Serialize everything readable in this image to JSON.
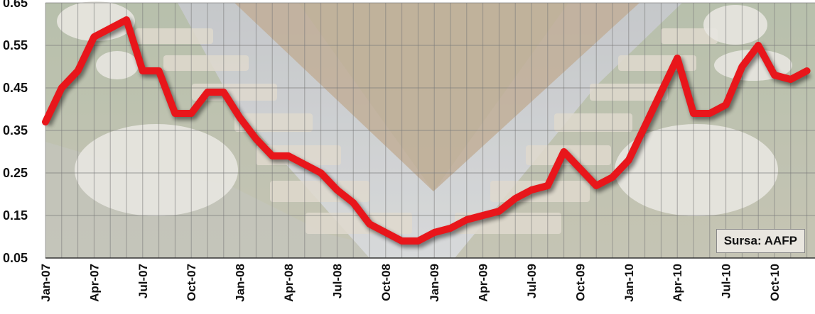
{
  "chart_data": {
    "type": "line",
    "title": "",
    "xlabel": "",
    "ylabel": "",
    "ylim": [
      0.05,
      0.65
    ],
    "y_ticks": [
      "0.65",
      "0.55",
      "0.45",
      "0.35",
      "0.25",
      "0.15",
      "0.05"
    ],
    "grid": true,
    "line_color": "#e8161b",
    "categories": [
      "Jan-07",
      "Feb-07",
      "Mar-07",
      "Apr-07",
      "May-07",
      "Jun-07",
      "Jul-07",
      "Aug-07",
      "Sep-07",
      "Oct-07",
      "Nov-07",
      "Dec-07",
      "Jan-08",
      "Feb-08",
      "Mar-08",
      "Apr-08",
      "May-08",
      "Jun-08",
      "Jul-08",
      "Aug-08",
      "Sep-08",
      "Oct-08",
      "Nov-08",
      "Dec-08",
      "Jan-09",
      "Feb-09",
      "Mar-09",
      "Apr-09",
      "May-09",
      "Jun-09",
      "Jul-09",
      "Aug-09",
      "Sep-09",
      "Oct-09",
      "Nov-09",
      "Dec-09",
      "Jan-10",
      "Feb-10",
      "Mar-10",
      "Apr-10",
      "May-10",
      "Jun-10",
      "Jul-10",
      "Aug-10",
      "Sep-10",
      "Oct-10",
      "Nov-10",
      "Dec-10"
    ],
    "x_tick_labels": [
      "Jan-07",
      "Apr-07",
      "Jul-07",
      "Oct-07",
      "Jan-08",
      "Apr-08",
      "Jul-08",
      "Oct-08",
      "Jan-09",
      "Apr-09",
      "Jul-09",
      "Oct-09",
      "Jan-10",
      "Apr-10",
      "Jul-10",
      "Oct-10"
    ],
    "series": [
      {
        "values": [
          0.37,
          0.45,
          0.49,
          0.57,
          0.59,
          0.61,
          0.49,
          0.49,
          0.39,
          0.39,
          0.44,
          0.44,
          0.38,
          0.33,
          0.29,
          0.29,
          0.27,
          0.25,
          0.21,
          0.18,
          0.13,
          0.11,
          0.09,
          0.09,
          0.11,
          0.12,
          0.14,
          0.15,
          0.16,
          0.19,
          0.21,
          0.22,
          0.3,
          0.26,
          0.22,
          0.24,
          0.28,
          0.36,
          0.44,
          0.52,
          0.39,
          0.39,
          0.41,
          0.5,
          0.55,
          0.48,
          0.47,
          0.49
        ]
      }
    ]
  },
  "source_label": "Sursa: AAFP"
}
